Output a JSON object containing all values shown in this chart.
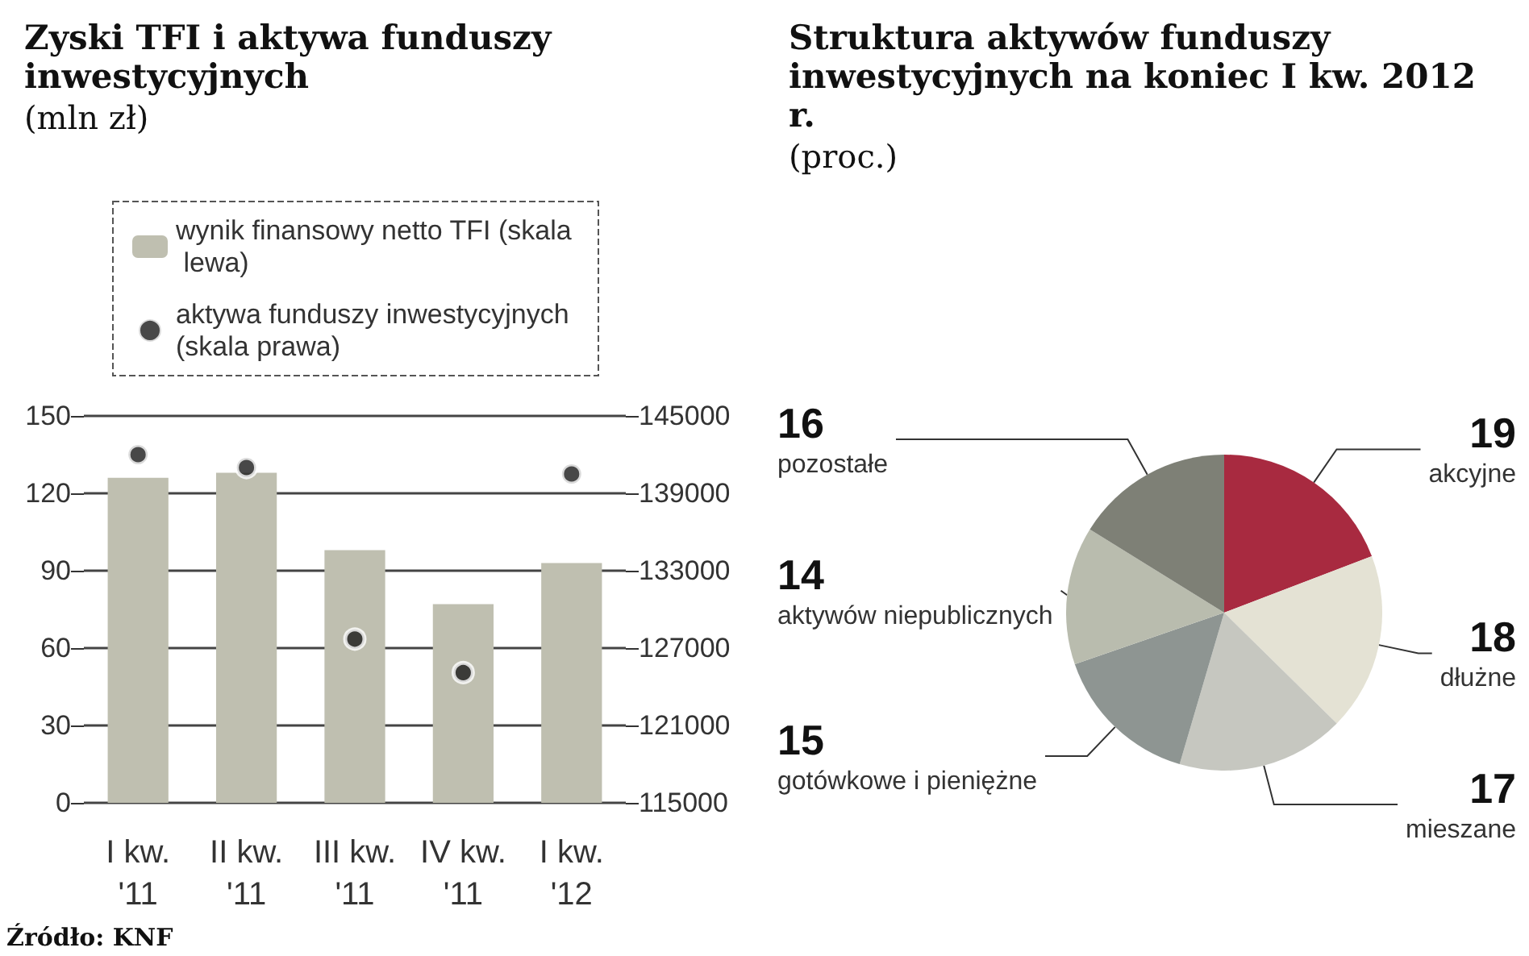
{
  "chart_data": [
    {
      "type": "bar",
      "title": "Zyski TFI i aktywa funduszy inwestycyjnych",
      "subtitle": "(mln zł)",
      "categories": [
        "I kw.\n'11",
        "II kw.\n'11",
        "III kw.\n'11",
        "IV kw.\n'11",
        "I kw.\n'12"
      ],
      "series": [
        {
          "name": "wynik finansowy netto TFI (skala lewa)",
          "type": "bar",
          "color": "#bfbfb0",
          "values": [
            126,
            128,
            98,
            77,
            93
          ]
        },
        {
          "name": "aktywa funduszy inwestycyjnych (skala prawa)",
          "type": "scatter",
          "axis": "y2",
          "color": "#1a1a1a",
          "values": [
            142000,
            141000,
            127700,
            125100,
            140500
          ]
        }
      ],
      "ylim": [
        0,
        150
      ],
      "yticks": [
        0,
        30,
        60,
        90,
        120,
        150
      ],
      "y2lim": [
        115000,
        145000
      ],
      "y2ticks": [
        115000,
        121000,
        127000,
        133000,
        139000,
        145000
      ],
      "grid": "y",
      "legend": "top",
      "marker": "circle",
      "annotations": [
        "Źródło: KNF"
      ]
    },
    {
      "type": "pie",
      "title": "Struktura aktywów funduszy inwestycyjnych na koniec I kw. 2012 r.",
      "subtitle": "(proc.)",
      "categories": [
        "akcyjne",
        "dłużne",
        "mieszane",
        "gotówkowe i pieniężne",
        "aktywów niepublicznych",
        "pozostałe"
      ],
      "values": [
        19,
        18,
        17,
        15,
        14,
        16
      ],
      "colors": [
        "#a82a40",
        "#e4e2d4",
        "#c6c7c0",
        "#8e9592",
        "#b9bcae",
        "#7e8076"
      ],
      "data_labels": true
    }
  ]
}
